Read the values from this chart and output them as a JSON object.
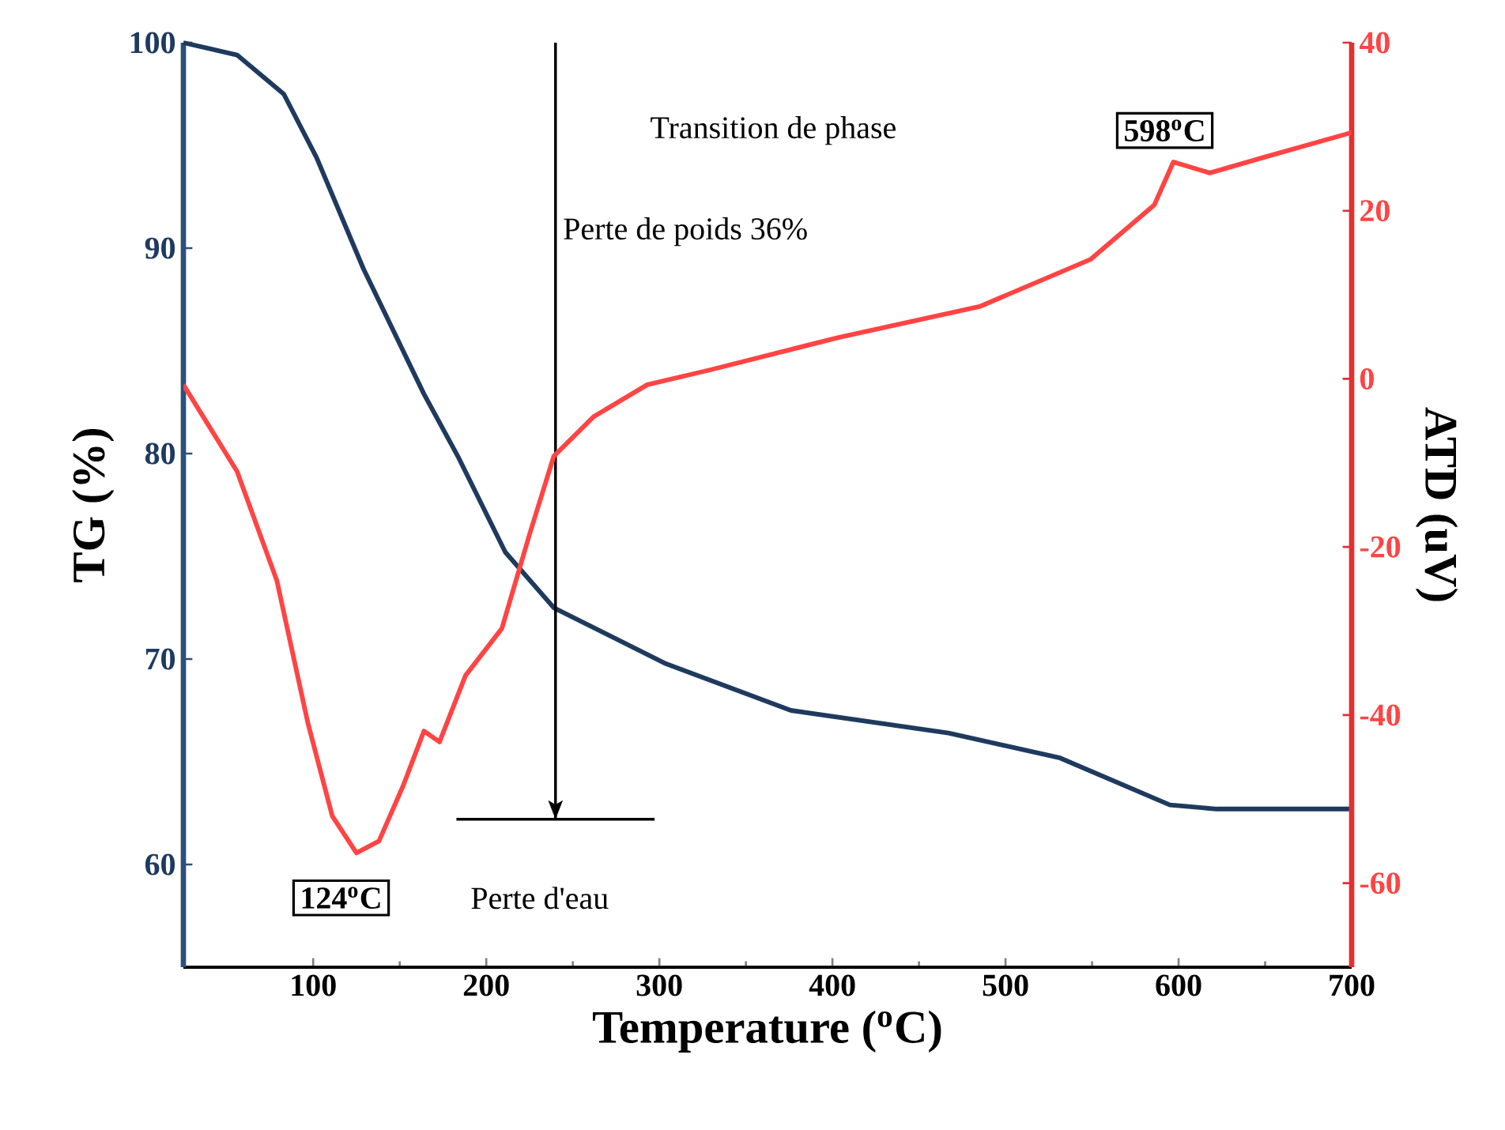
{
  "chart_data": {
    "type": "line",
    "xlabel": "Temperature ($^{o}$C)",
    "ylabel": "TG (%)",
    "y2label": "ATD (uV)",
    "xlim": [
      25,
      700
    ],
    "xticks": [
      100,
      200,
      300,
      400,
      500,
      600,
      700
    ],
    "ylim": [
      55,
      100
    ],
    "yticks": [
      60,
      70,
      80,
      90,
      100
    ],
    "y2lim": [
      -70,
      40
    ],
    "y2ticks": [
      -60,
      -40,
      -20,
      0,
      20,
      40
    ],
    "series": [
      {
        "color": "#1f3a5f",
        "x": [
          25,
          56,
          83,
          102,
          129,
          164,
          184,
          211,
          239,
          303,
          376,
          467,
          531,
          595,
          622,
          700
        ],
        "values": [
          100,
          99.4,
          97.5,
          94.4,
          89.0,
          82.9,
          79.8,
          75.2,
          72.5,
          69.8,
          67.5,
          66.4,
          65.2,
          62.9,
          62.7,
          62.7
        ]
      },
      {
        "color": "#ff4444",
        "axis": "y2",
        "x": [
          25,
          56,
          79,
          97,
          111,
          125,
          138,
          152,
          164,
          173,
          188,
          209,
          225,
          239,
          262,
          293,
          330,
          403,
          485,
          549,
          586,
          597,
          618,
          650,
          700
        ],
        "values": [
          -0.7,
          -11,
          -24,
          -41,
          -52,
          -56.4,
          -55,
          -48.4,
          -41.9,
          -43.2,
          -35.3,
          -29.7,
          -18.5,
          -9.2,
          -4.5,
          -0.7,
          1.1,
          4.9,
          8.6,
          14.2,
          20.7,
          25.8,
          24.5,
          26.4,
          29.3
        ]
      }
    ],
    "ref_lines": [
      {
        "axis": "x",
        "value": 240,
        "label": "Perte de poids 36%",
        "color": "#000000"
      },
      {
        "axis": "y",
        "value": 62.2,
        "color": "#000000"
      }
    ],
    "annotations": [
      "Transition de phase",
      "598$^{o}$C",
      "124$^{o}$C",
      "Perte d'eau"
    ]
  }
}
